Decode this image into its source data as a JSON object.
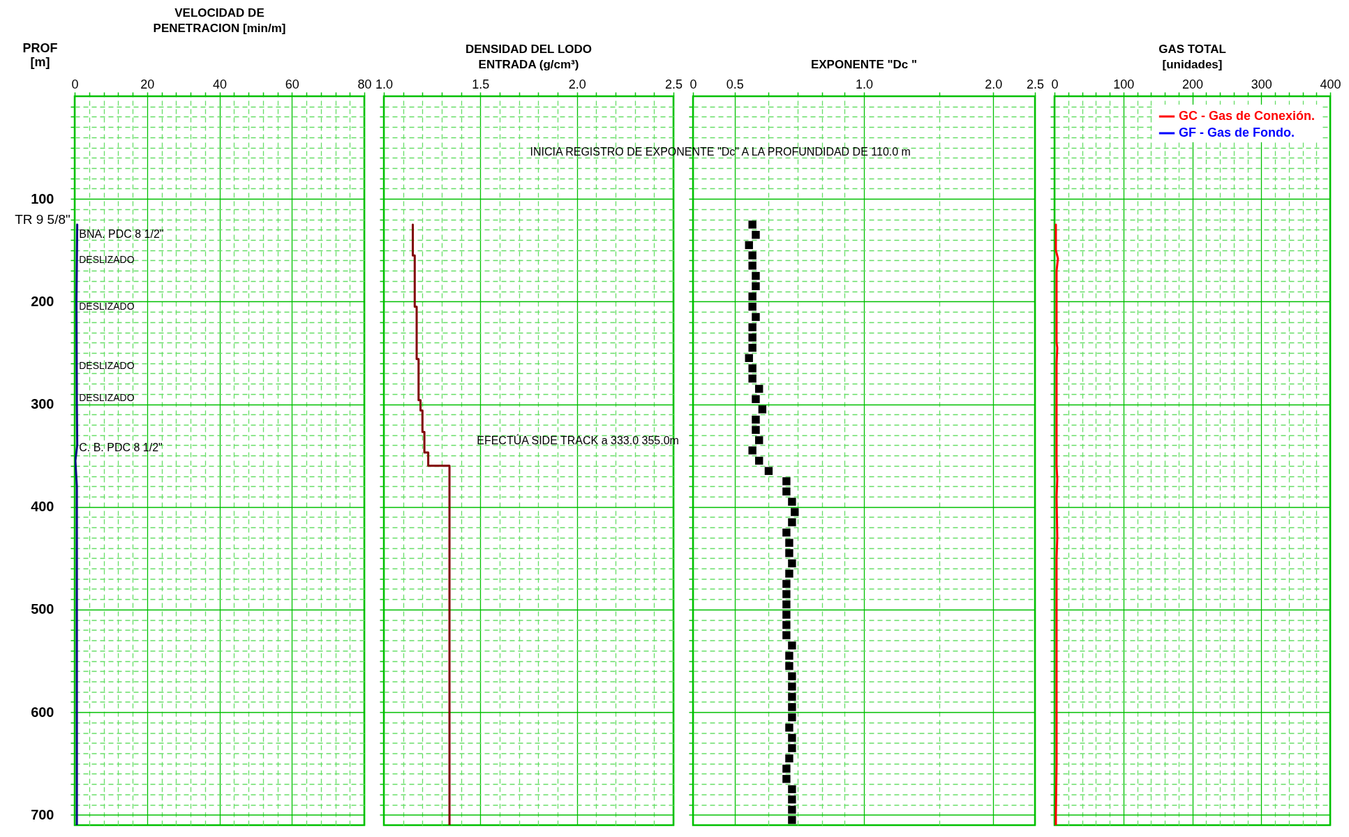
{
  "chart_data": [
    {
      "type": "line",
      "title": "VELOCIDAD DE\nPENETRACION  [min/m]",
      "ylabel": "PROF\n[m]",
      "xlim": [
        0,
        80
      ],
      "xticks": [
        0,
        {
          "value": 4,
          "label": null
        },
        {
          "value": 8,
          "label": null
        },
        {
          "value": 12,
          "label": null
        },
        {
          "value": 16,
          "label": null
        },
        20,
        {
          "value": 24,
          "label": null
        },
        {
          "value": 28,
          "label": null
        },
        {
          "value": 32,
          "label": null
        },
        {
          "value": 36,
          "label": null
        },
        40,
        {
          "value": 44,
          "label": null
        },
        {
          "value": 48,
          "label": null
        },
        {
          "value": 52,
          "label": null
        },
        {
          "value": 56,
          "label": null
        },
        60,
        {
          "value": 64,
          "label": null
        },
        {
          "value": 68,
          "label": null
        },
        {
          "value": 72,
          "label": null
        },
        {
          "value": 76,
          "label": null
        },
        80
      ],
      "ylim": [
        710,
        0
      ],
      "yticks": [
        {
          "value": 10,
          "label": null
        },
        {
          "value": 20,
          "label": null
        },
        {
          "value": 30,
          "label": null
        },
        {
          "value": 40,
          "label": null
        },
        {
          "value": 50,
          "label": null
        },
        {
          "value": 60,
          "label": null
        },
        {
          "value": 70,
          "label": null
        },
        {
          "value": 80,
          "label": null
        },
        {
          "value": 90,
          "label": null
        },
        100,
        {
          "value": 110,
          "label": null
        },
        {
          "value": 120,
          "label": null
        },
        {
          "value": 130,
          "label": null
        },
        {
          "value": 140,
          "label": null
        },
        {
          "value": 150,
          "label": null
        },
        {
          "value": 160,
          "label": null
        },
        {
          "value": 170,
          "label": null
        },
        {
          "value": 180,
          "label": null
        },
        {
          "value": 190,
          "label": null
        },
        200,
        {
          "value": 210,
          "label": null
        },
        {
          "value": 220,
          "label": null
        },
        {
          "value": 230,
          "label": null
        },
        {
          "value": 240,
          "label": null
        },
        {
          "value": 250,
          "label": null
        },
        {
          "value": 260,
          "label": null
        },
        {
          "value": 270,
          "label": null
        },
        {
          "value": 280,
          "label": null
        },
        {
          "value": 290,
          "label": null
        },
        300,
        {
          "value": 310,
          "label": null
        },
        {
          "value": 320,
          "label": null
        },
        {
          "value": 330,
          "label": null
        },
        {
          "value": 340,
          "label": null
        },
        {
          "value": 350,
          "label": null
        },
        {
          "value": 360,
          "label": null
        },
        {
          "value": 370,
          "label": null
        },
        {
          "value": 380,
          "label": null
        },
        {
          "value": 390,
          "label": null
        },
        400,
        {
          "value": 410,
          "label": null
        },
        {
          "value": 420,
          "label": null
        },
        {
          "value": 430,
          "label": null
        },
        {
          "value": 440,
          "label": null
        },
        {
          "value": 450,
          "label": null
        },
        {
          "value": 460,
          "label": null
        },
        {
          "value": 470,
          "label": null
        },
        {
          "value": 480,
          "label": null
        },
        {
          "value": 490,
          "label": null
        },
        500,
        {
          "value": 510,
          "label": null
        },
        {
          "value": 520,
          "label": null
        },
        {
          "value": 530,
          "label": null
        },
        {
          "value": 540,
          "label": null
        },
        {
          "value": 550,
          "label": null
        },
        {
          "value": 560,
          "label": null
        },
        {
          "value": 570,
          "label": null
        },
        {
          "value": 580,
          "label": null
        },
        {
          "value": 590,
          "label": null
        },
        600,
        {
          "value": 610,
          "label": null
        },
        {
          "value": 620,
          "label": null
        },
        {
          "value": 630,
          "label": null
        },
        {
          "value": 640,
          "label": null
        },
        {
          "value": 650,
          "label": null
        },
        {
          "value": 660,
          "label": null
        },
        {
          "value": 670,
          "label": null
        },
        {
          "value": 680,
          "label": null
        },
        {
          "value": 690,
          "label": null
        },
        700
      ],
      "grid": true,
      "series": [
        {
          "color": "#0a0a80",
          "x": [
            0.7,
            0.5,
            0.6,
            0.7,
            0.2,
            0.6,
            0.6
          ],
          "values": [
            125,
            200,
            300,
            340,
            355,
            380,
            710
          ]
        }
      ],
      "annotations": [
        "TR  9 5/8\"",
        "BNA. PDC 8 1/2\"",
        "DESLIZADO",
        "DESLIZADO",
        "DESLIZADO",
        "DESLIZADO",
        "C. B. PDC 8 1/2\""
      ]
    },
    {
      "type": "line",
      "title": "DENSIDAD  DEL LODO\nENTRADA  (g/cm³)",
      "tick_labels": "x",
      "xlim": [
        1.0,
        2.5
      ],
      "xticks": [
        {
          "value": 1.0,
          "label": "1.0"
        },
        {
          "value": 1.1,
          "label": null
        },
        {
          "value": 1.2,
          "label": null
        },
        {
          "value": 1.3,
          "label": null
        },
        {
          "value": 1.4,
          "label": null
        },
        1.5,
        {
          "value": 1.6,
          "label": null
        },
        {
          "value": 1.7,
          "label": null
        },
        {
          "value": 1.8,
          "label": null
        },
        {
          "value": 1.9,
          "label": null
        },
        {
          "value": 2.0,
          "label": "2.0"
        },
        {
          "value": 2.1,
          "label": null
        },
        {
          "value": 2.2,
          "label": null
        },
        {
          "value": 2.3,
          "label": null
        },
        {
          "value": 2.4,
          "label": null
        },
        2.5
      ],
      "ylim": [
        710,
        0
      ],
      "yticks": [
        {
          "value": 10,
          "label": null
        },
        {
          "value": 20,
          "label": null
        },
        {
          "value": 30,
          "label": null
        },
        {
          "value": 40,
          "label": null
        },
        {
          "value": 50,
          "label": null
        },
        {
          "value": 60,
          "label": null
        },
        {
          "value": 70,
          "label": null
        },
        {
          "value": 80,
          "label": null
        },
        {
          "value": 90,
          "label": null
        },
        100,
        {
          "value": 110,
          "label": null
        },
        {
          "value": 120,
          "label": null
        },
        {
          "value": 130,
          "label": null
        },
        {
          "value": 140,
          "label": null
        },
        {
          "value": 150,
          "label": null
        },
        {
          "value": 160,
          "label": null
        },
        {
          "value": 170,
          "label": null
        },
        {
          "value": 180,
          "label": null
        },
        {
          "value": 190,
          "label": null
        },
        200,
        {
          "value": 210,
          "label": null
        },
        {
          "value": 220,
          "label": null
        },
        {
          "value": 230,
          "label": null
        },
        {
          "value": 240,
          "label": null
        },
        {
          "value": 250,
          "label": null
        },
        {
          "value": 260,
          "label": null
        },
        {
          "value": 270,
          "label": null
        },
        {
          "value": 280,
          "label": null
        },
        {
          "value": 290,
          "label": null
        },
        300,
        {
          "value": 310,
          "label": null
        },
        {
          "value": 320,
          "label": null
        },
        {
          "value": 330,
          "label": null
        },
        {
          "value": 340,
          "label": null
        },
        {
          "value": 350,
          "label": null
        },
        {
          "value": 360,
          "label": null
        },
        {
          "value": 370,
          "label": null
        },
        {
          "value": 380,
          "label": null
        },
        {
          "value": 390,
          "label": null
        },
        400,
        {
          "value": 410,
          "label": null
        },
        {
          "value": 420,
          "label": null
        },
        {
          "value": 430,
          "label": null
        },
        {
          "value": 440,
          "label": null
        },
        {
          "value": 450,
          "label": null
        },
        {
          "value": 460,
          "label": null
        },
        {
          "value": 470,
          "label": null
        },
        {
          "value": 480,
          "label": null
        },
        {
          "value": 490,
          "label": null
        },
        500,
        {
          "value": 510,
          "label": null
        },
        {
          "value": 520,
          "label": null
        },
        {
          "value": 530,
          "label": null
        },
        {
          "value": 540,
          "label": null
        },
        {
          "value": 550,
          "label": null
        },
        {
          "value": 560,
          "label": null
        },
        {
          "value": 570,
          "label": null
        },
        {
          "value": 580,
          "label": null
        },
        {
          "value": 590,
          "label": null
        },
        600,
        {
          "value": 610,
          "label": null
        },
        {
          "value": 620,
          "label": null
        },
        {
          "value": 630,
          "label": null
        },
        {
          "value": 640,
          "label": null
        },
        {
          "value": 650,
          "label": null
        },
        {
          "value": 660,
          "label": null
        },
        {
          "value": 670,
          "label": null
        },
        {
          "value": 680,
          "label": null
        },
        {
          "value": 690,
          "label": null
        },
        700
      ],
      "grid": true,
      "series": [
        {
          "color": "#800000",
          "x": [
            1.15,
            1.15,
            1.16,
            1.16,
            1.17,
            1.17,
            1.18,
            1.18,
            1.19,
            1.19,
            1.2,
            1.2,
            1.21,
            1.21,
            1.23,
            1.23,
            1.34,
            1.34
          ],
          "values": [
            125,
            155,
            155,
            205,
            205,
            256,
            256,
            296,
            296,
            306,
            306,
            327,
            327,
            347,
            347,
            360,
            360,
            710
          ]
        }
      ],
      "annotations": [
        "EFECTÚA  SIDE  TRACK  a 333.0 355.0m"
      ]
    },
    {
      "type": "scatter",
      "title": "EXPONENTE  \"Dc \"",
      "tick_labels": "x",
      "log": "x",
      "marker": "square",
      "xlim": [
        0.4,
        2.5
      ],
      "xticks": [
        {
          "value": 0.4,
          "label": "0"
        },
        0.5,
        {
          "value": 0.6,
          "label": null
        },
        {
          "value": 0.7,
          "label": null
        },
        {
          "value": 0.8,
          "label": null
        },
        {
          "value": 0.9,
          "label": null
        },
        {
          "value": 1.0,
          "label": "1.0"
        },
        {
          "value": 1.5,
          "label": null
        },
        {
          "value": 2.0,
          "label": "2.0"
        },
        2.5
      ],
      "ylim": [
        710,
        0
      ],
      "yticks": [
        {
          "value": 10,
          "label": null
        },
        {
          "value": 20,
          "label": null
        },
        {
          "value": 30,
          "label": null
        },
        {
          "value": 40,
          "label": null
        },
        {
          "value": 50,
          "label": null
        },
        {
          "value": 60,
          "label": null
        },
        {
          "value": 70,
          "label": null
        },
        {
          "value": 80,
          "label": null
        },
        {
          "value": 90,
          "label": null
        },
        100,
        {
          "value": 110,
          "label": null
        },
        {
          "value": 120,
          "label": null
        },
        {
          "value": 130,
          "label": null
        },
        {
          "value": 140,
          "label": null
        },
        {
          "value": 150,
          "label": null
        },
        {
          "value": 160,
          "label": null
        },
        {
          "value": 170,
          "label": null
        },
        {
          "value": 180,
          "label": null
        },
        {
          "value": 190,
          "label": null
        },
        200,
        {
          "value": 210,
          "label": null
        },
        {
          "value": 220,
          "label": null
        },
        {
          "value": 230,
          "label": null
        },
        {
          "value": 240,
          "label": null
        },
        {
          "value": 250,
          "label": null
        },
        {
          "value": 260,
          "label": null
        },
        {
          "value": 270,
          "label": null
        },
        {
          "value": 280,
          "label": null
        },
        {
          "value": 290,
          "label": null
        },
        300,
        {
          "value": 310,
          "label": null
        },
        {
          "value": 320,
          "label": null
        },
        {
          "value": 330,
          "label": null
        },
        {
          "value": 340,
          "label": null
        },
        {
          "value": 350,
          "label": null
        },
        {
          "value": 360,
          "label": null
        },
        {
          "value": 370,
          "label": null
        },
        {
          "value": 380,
          "label": null
        },
        {
          "value": 390,
          "label": null
        },
        400,
        {
          "value": 410,
          "label": null
        },
        {
          "value": 420,
          "label": null
        },
        {
          "value": 430,
          "label": null
        },
        {
          "value": 440,
          "label": null
        },
        {
          "value": 450,
          "label": null
        },
        {
          "value": 460,
          "label": null
        },
        {
          "value": 470,
          "label": null
        },
        {
          "value": 480,
          "label": null
        },
        {
          "value": 490,
          "label": null
        },
        500,
        {
          "value": 510,
          "label": null
        },
        {
          "value": 520,
          "label": null
        },
        {
          "value": 530,
          "label": null
        },
        {
          "value": 540,
          "label": null
        },
        {
          "value": 550,
          "label": null
        },
        {
          "value": 560,
          "label": null
        },
        {
          "value": 570,
          "label": null
        },
        {
          "value": 580,
          "label": null
        },
        {
          "value": 590,
          "label": null
        },
        600,
        {
          "value": 610,
          "label": null
        },
        {
          "value": 620,
          "label": null
        },
        {
          "value": 630,
          "label": null
        },
        {
          "value": 640,
          "label": null
        },
        {
          "value": 650,
          "label": null
        },
        {
          "value": 660,
          "label": null
        },
        {
          "value": 670,
          "label": null
        },
        {
          "value": 680,
          "label": null
        },
        {
          "value": 690,
          "label": null
        },
        700
      ],
      "grid": true,
      "series": [
        {
          "color": "#000000",
          "x": [
            0.55,
            0.56,
            0.54,
            0.55,
            0.55,
            0.56,
            0.56,
            0.55,
            0.55,
            0.56,
            0.55,
            0.55,
            0.55,
            0.54,
            0.55,
            0.55,
            0.57,
            0.56,
            0.58,
            0.56,
            0.56,
            0.57,
            0.55,
            0.57,
            0.6,
            0.66,
            0.66,
            0.68,
            0.69,
            0.68,
            0.66,
            0.67,
            0.67,
            0.68,
            0.67,
            0.66,
            0.66,
            0.66,
            0.66,
            0.66,
            0.66,
            0.68,
            0.67,
            0.67,
            0.68,
            0.68,
            0.68,
            0.68,
            0.68,
            0.67,
            0.68,
            0.68,
            0.67,
            0.66,
            0.66,
            0.68,
            0.68,
            0.68,
            0.68
          ],
          "values": [
            125,
            135,
            145,
            155,
            165,
            175,
            185,
            195,
            205,
            215,
            225,
            235,
            245,
            255,
            265,
            275,
            285,
            295,
            305,
            315,
            325,
            335,
            345,
            355,
            365,
            375,
            385,
            395,
            405,
            415,
            425,
            435,
            445,
            455,
            465,
            475,
            485,
            495,
            505,
            515,
            525,
            535,
            545,
            555,
            565,
            575,
            585,
            595,
            605,
            615,
            625,
            635,
            645,
            655,
            665,
            675,
            685,
            695,
            705
          ]
        }
      ],
      "annotations": [
        "INICIA REGISTRO DE EXPONENTE \"Dc\" A LA PROFUNDIDAD DE  110.0 m"
      ]
    },
    {
      "type": "line",
      "title": "GAS   TOTAL\n[unidades]",
      "tick_labels": "x",
      "legend": "top right",
      "xlim": [
        0,
        400
      ],
      "xticks": [
        0,
        {
          "value": 20,
          "label": null
        },
        {
          "value": 40,
          "label": null
        },
        {
          "value": 60,
          "label": null
        },
        {
          "value": 80,
          "label": null
        },
        100,
        {
          "value": 120,
          "label": null
        },
        {
          "value": 140,
          "label": null
        },
        {
          "value": 160,
          "label": null
        },
        {
          "value": 180,
          "label": null
        },
        200,
        {
          "value": 220,
          "label": null
        },
        {
          "value": 240,
          "label": null
        },
        {
          "value": 260,
          "label": null
        },
        {
          "value": 280,
          "label": null
        },
        300,
        {
          "value": 320,
          "label": null
        },
        {
          "value": 340,
          "label": null
        },
        {
          "value": 360,
          "label": null
        },
        {
          "value": 380,
          "label": null
        },
        400
      ],
      "ylim": [
        710,
        0
      ],
      "yticks": [
        {
          "value": 10,
          "label": null
        },
        {
          "value": 20,
          "label": null
        },
        {
          "value": 30,
          "label": null
        },
        {
          "value": 40,
          "label": null
        },
        {
          "value": 50,
          "label": null
        },
        {
          "value": 60,
          "label": null
        },
        {
          "value": 70,
          "label": null
        },
        {
          "value": 80,
          "label": null
        },
        {
          "value": 90,
          "label": null
        },
        100,
        {
          "value": 110,
          "label": null
        },
        {
          "value": 120,
          "label": null
        },
        {
          "value": 130,
          "label": null
        },
        {
          "value": 140,
          "label": null
        },
        {
          "value": 150,
          "label": null
        },
        {
          "value": 160,
          "label": null
        },
        {
          "value": 170,
          "label": null
        },
        {
          "value": 180,
          "label": null
        },
        {
          "value": 190,
          "label": null
        },
        200,
        {
          "value": 210,
          "label": null
        },
        {
          "value": 220,
          "label": null
        },
        {
          "value": 230,
          "label": null
        },
        {
          "value": 240,
          "label": null
        },
        {
          "value": 250,
          "label": null
        },
        {
          "value": 260,
          "label": null
        },
        {
          "value": 270,
          "label": null
        },
        {
          "value": 280,
          "label": null
        },
        {
          "value": 290,
          "label": null
        },
        300,
        {
          "value": 310,
          "label": null
        },
        {
          "value": 320,
          "label": null
        },
        {
          "value": 330,
          "label": null
        },
        {
          "value": 340,
          "label": null
        },
        {
          "value": 350,
          "label": null
        },
        {
          "value": 360,
          "label": null
        },
        {
          "value": 370,
          "label": null
        },
        {
          "value": 380,
          "label": null
        },
        {
          "value": 390,
          "label": null
        },
        400,
        {
          "value": 410,
          "label": null
        },
        {
          "value": 420,
          "label": null
        },
        {
          "value": 430,
          "label": null
        },
        {
          "value": 440,
          "label": null
        },
        {
          "value": 450,
          "label": null
        },
        {
          "value": 460,
          "label": null
        },
        {
          "value": 470,
          "label": null
        },
        {
          "value": 480,
          "label": null
        },
        {
          "value": 490,
          "label": null
        },
        500,
        {
          "value": 510,
          "label": null
        },
        {
          "value": 520,
          "label": null
        },
        {
          "value": 530,
          "label": null
        },
        {
          "value": 540,
          "label": null
        },
        {
          "value": 550,
          "label": null
        },
        {
          "value": 560,
          "label": null
        },
        {
          "value": 570,
          "label": null
        },
        {
          "value": 580,
          "label": null
        },
        {
          "value": 590,
          "label": null
        },
        600,
        {
          "value": 610,
          "label": null
        },
        {
          "value": 620,
          "label": null
        },
        {
          "value": 630,
          "label": null
        },
        {
          "value": 640,
          "label": null
        },
        {
          "value": 650,
          "label": null
        },
        {
          "value": 660,
          "label": null
        },
        {
          "value": 670,
          "label": null
        },
        {
          "value": 680,
          "label": null
        },
        {
          "value": 690,
          "label": null
        },
        700
      ],
      "grid": true,
      "series": [
        {
          "name": "GC - Gas  de Conexión.",
          "color": "#ff0000",
          "x": [
            2,
            2,
            5,
            3,
            3,
            4,
            3,
            3,
            4,
            3,
            4,
            3,
            3,
            2,
            2
          ],
          "values": [
            125,
            150,
            158,
            170,
            240,
            245,
            260,
            360,
            373,
            390,
            430,
            450,
            650,
            700,
            710
          ]
        },
        {
          "name": "GF - Gas de Fondo.",
          "color": "#0000ff",
          "x": [
            null,
            null
          ],
          "values": [
            null,
            null
          ]
        }
      ]
    }
  ]
}
